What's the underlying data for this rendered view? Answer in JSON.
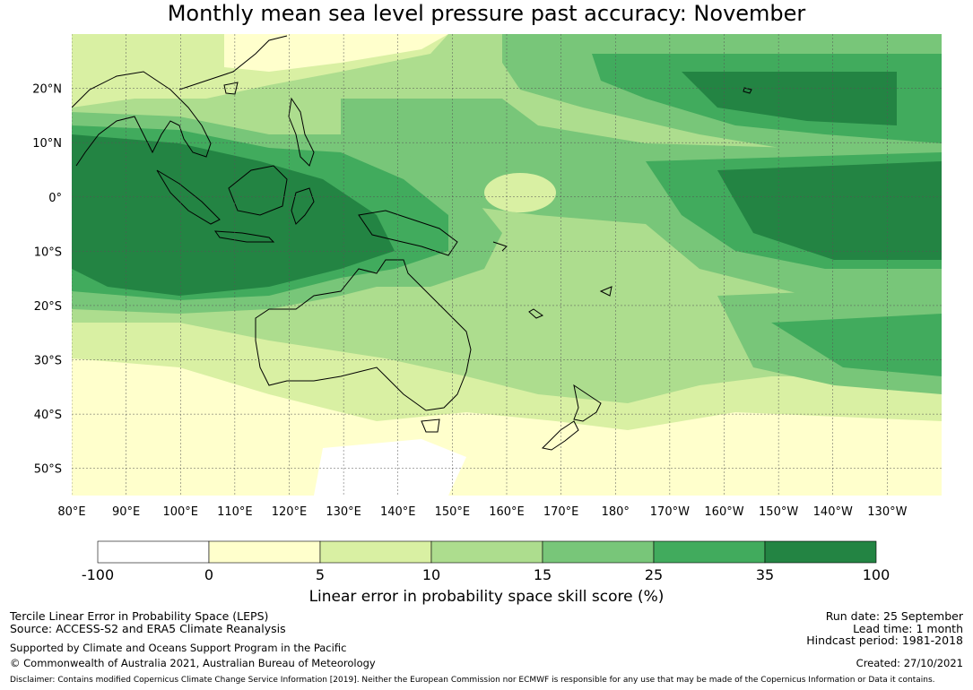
{
  "title": "Monthly mean sea level pressure past accuracy: November",
  "map": {
    "lat_ticks": [
      "20°N",
      "10°N",
      "0°",
      "10°S",
      "20°S",
      "30°S",
      "40°S",
      "50°S"
    ],
    "lon_ticks": [
      "80°E",
      "90°E",
      "100°E",
      "110°E",
      "120°E",
      "130°E",
      "140°E",
      "150°E",
      "160°E",
      "170°E",
      "180°",
      "170°W",
      "160°W",
      "150°W",
      "140°W",
      "130°W"
    ],
    "extent": {
      "lon_min": 80,
      "lon_max": 240,
      "lat_min": -55,
      "lat_max": 30
    }
  },
  "colorbar": {
    "ticks": [
      "-100",
      "0",
      "5",
      "10",
      "15",
      "25",
      "35",
      "100"
    ],
    "colors": [
      "#ffffff",
      "#ffffcc",
      "#d9f0a3",
      "#addd8e",
      "#78c679",
      "#41ab5d",
      "#238443"
    ],
    "label": "Linear error in probability space skill score (%)"
  },
  "footer": {
    "left_line1": "Tercile Linear Error in Probability Space (LEPS)",
    "left_line2": "Source: ACCESS-S2 and ERA5 Climate Reanalysis",
    "left_line3": "Supported by Climate and Oceans Support Program in the Pacific",
    "left_line4": "© Commonwealth of Australia 2021, Australian Bureau of Meteorology",
    "right_line1": "Run date: 25 September",
    "right_line2": "Lead time: 1 month",
    "right_line3": "Hindcast period: 1981-2018",
    "right_line4": "Created: 27/10/2021",
    "disclaimer": "Disclaimer: Contains modified Copernicus Climate Change Service Information [2019]. Neither the European Commission nor ECMWF is responsible for any use that may be made of the Copernicus Information or Data it contains."
  }
}
